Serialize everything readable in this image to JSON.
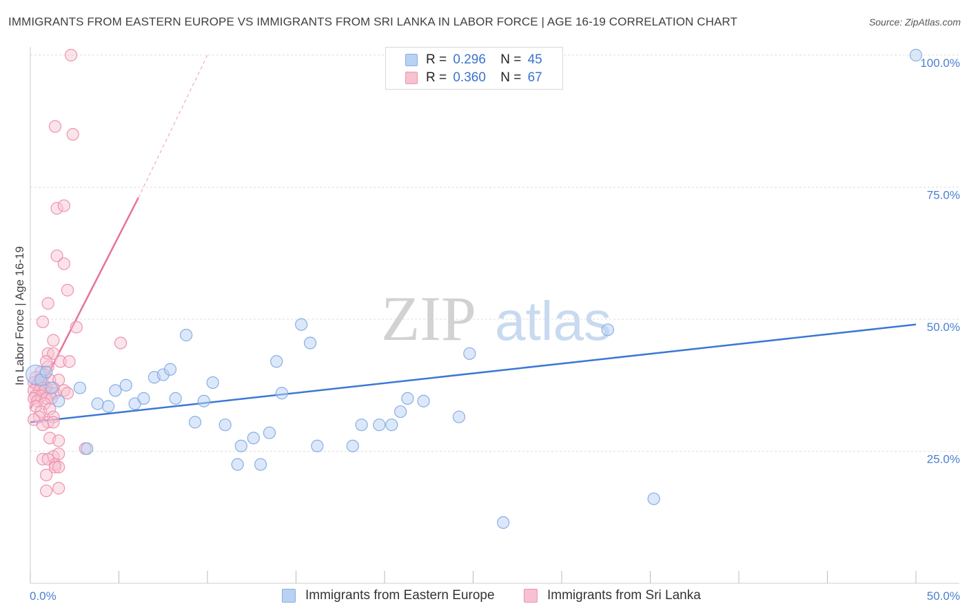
{
  "title": "IMMIGRANTS FROM EASTERN EUROPE VS IMMIGRANTS FROM SRI LANKA IN LABOR FORCE | AGE 16-19 CORRELATION CHART",
  "source": "Source: ZipAtlas.com",
  "watermark": {
    "zip": "ZIP",
    "atlas": "atlas"
  },
  "legend": {
    "r_label": "R =",
    "n_label": "N =",
    "rows": [
      {
        "r": "0.296",
        "n": "45"
      },
      {
        "r": "0.360",
        "n": "67"
      }
    ]
  },
  "colors": {
    "blue_fill": "#b9d1f3",
    "blue_stroke": "#86aee4",
    "blue_line": "#3a78d4",
    "pink_fill": "#f7c1d1",
    "pink_stroke": "#ee92ae",
    "pink_line": "#e8709a",
    "grid": "#dddddd",
    "tick_text": "#4a7fd0"
  },
  "chart_data": {
    "type": "scatter",
    "xlabel": "",
    "ylabel": "In Labor Force | Age 16-19",
    "xlim": [
      0,
      50
    ],
    "ylim": [
      0,
      100
    ],
    "x_tick_labels": [
      "0.0%",
      "50.0%"
    ],
    "y_ticks": [
      25,
      50,
      75,
      100
    ],
    "y_tick_labels": [
      "25.0%",
      "50.0%",
      "75.0%",
      "100.0%"
    ],
    "grid": true,
    "series": [
      {
        "name": "Immigrants from Eastern Europe",
        "points": [
          [
            0.3,
            39.5
          ],
          [
            0.6,
            38.5
          ],
          [
            0.9,
            40.0
          ],
          [
            1.2,
            37.0
          ],
          [
            1.6,
            34.5
          ],
          [
            2.8,
            37.0
          ],
          [
            3.2,
            25.5
          ],
          [
            3.8,
            34.0
          ],
          [
            4.4,
            33.5
          ],
          [
            4.8,
            36.5
          ],
          [
            5.4,
            37.5
          ],
          [
            5.9,
            34.0
          ],
          [
            6.4,
            35.0
          ],
          [
            7.0,
            39.0
          ],
          [
            7.5,
            39.5
          ],
          [
            7.9,
            40.5
          ],
          [
            8.2,
            35.0
          ],
          [
            8.8,
            47.0
          ],
          [
            9.3,
            30.5
          ],
          [
            9.8,
            34.5
          ],
          [
            10.3,
            38.0
          ],
          [
            11.0,
            30.0
          ],
          [
            11.7,
            22.5
          ],
          [
            11.9,
            26.0
          ],
          [
            12.6,
            27.5
          ],
          [
            13.0,
            22.5
          ],
          [
            13.5,
            28.5
          ],
          [
            13.9,
            42.0
          ],
          [
            14.2,
            36.0
          ],
          [
            15.3,
            49.0
          ],
          [
            15.8,
            45.5
          ],
          [
            16.2,
            26.0
          ],
          [
            18.2,
            26.0
          ],
          [
            18.7,
            30.0
          ],
          [
            19.7,
            30.0
          ],
          [
            20.4,
            30.0
          ],
          [
            20.9,
            32.5
          ],
          [
            21.3,
            35.0
          ],
          [
            22.2,
            34.5
          ],
          [
            24.2,
            31.5
          ],
          [
            24.8,
            43.5
          ],
          [
            26.7,
            11.5
          ],
          [
            32.6,
            48.0
          ],
          [
            35.2,
            16.0
          ],
          [
            50.0,
            100.0
          ]
        ],
        "trend": {
          "x0": 0,
          "y0": 30.5,
          "x1": 50,
          "y1": 49.0
        }
      },
      {
        "name": "Immigrants from Sri Lanka",
        "points": [
          [
            2.3,
            100.0
          ],
          [
            1.4,
            86.5
          ],
          [
            2.4,
            85.0
          ],
          [
            1.5,
            71.0
          ],
          [
            1.9,
            71.5
          ],
          [
            1.5,
            62.0
          ],
          [
            1.9,
            60.5
          ],
          [
            2.1,
            55.5
          ],
          [
            1.0,
            53.0
          ],
          [
            0.7,
            49.5
          ],
          [
            2.6,
            48.5
          ],
          [
            5.1,
            45.5
          ],
          [
            1.3,
            46.0
          ],
          [
            1.0,
            43.5
          ],
          [
            1.3,
            43.5
          ],
          [
            1.0,
            41.0
          ],
          [
            1.7,
            42.0
          ],
          [
            2.2,
            42.0
          ],
          [
            0.9,
            42.0
          ],
          [
            0.6,
            40.0
          ],
          [
            0.8,
            39.5
          ],
          [
            0.3,
            39.0
          ],
          [
            0.5,
            38.5
          ],
          [
            0.7,
            38.0
          ],
          [
            1.1,
            38.5
          ],
          [
            1.6,
            38.5
          ],
          [
            0.2,
            38.0
          ],
          [
            0.4,
            37.5
          ],
          [
            0.6,
            37.0
          ],
          [
            0.9,
            37.0
          ],
          [
            1.3,
            37.0
          ],
          [
            0.2,
            36.5
          ],
          [
            0.5,
            36.5
          ],
          [
            0.8,
            36.5
          ],
          [
            1.1,
            36.0
          ],
          [
            1.4,
            36.0
          ],
          [
            1.9,
            36.5
          ],
          [
            2.1,
            36.0
          ],
          [
            0.3,
            35.5
          ],
          [
            0.6,
            35.5
          ],
          [
            0.9,
            35.0
          ],
          [
            1.2,
            35.0
          ],
          [
            0.2,
            35.0
          ],
          [
            0.4,
            34.5
          ],
          [
            0.8,
            34.0
          ],
          [
            0.3,
            33.5
          ],
          [
            0.6,
            32.5
          ],
          [
            1.1,
            33.0
          ],
          [
            1.3,
            31.5
          ],
          [
            0.5,
            31.5
          ],
          [
            0.2,
            31.0
          ],
          [
            1.0,
            30.5
          ],
          [
            1.3,
            30.5
          ],
          [
            0.7,
            30.0
          ],
          [
            1.1,
            27.5
          ],
          [
            1.6,
            27.0
          ],
          [
            3.1,
            25.5
          ],
          [
            1.3,
            24.0
          ],
          [
            1.6,
            24.5
          ],
          [
            0.7,
            23.5
          ],
          [
            1.0,
            23.5
          ],
          [
            1.4,
            22.5
          ],
          [
            1.4,
            22.0
          ],
          [
            1.6,
            22.0
          ],
          [
            0.9,
            20.5
          ],
          [
            0.9,
            17.5
          ],
          [
            1.6,
            18.0
          ]
        ],
        "trend": {
          "x0": 0,
          "y0": 33.0,
          "x1": 6.1,
          "y1": 73.0,
          "dash_x1": 10.0,
          "dash_y1": 100.0
        }
      }
    ]
  }
}
